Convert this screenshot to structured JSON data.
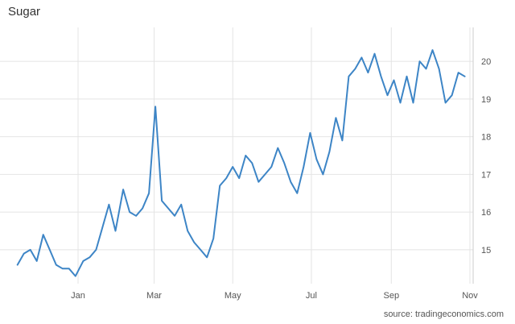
{
  "chart_data": {
    "type": "line",
    "title": "Sugar",
    "xlabel": "",
    "ylabel": "",
    "x_ticks": [
      "Jan",
      "Mar",
      "May",
      "Jul",
      "Sep",
      "Nov"
    ],
    "y_ticks": [
      "15",
      "16",
      "17",
      "18",
      "19",
      "20"
    ],
    "ylim": [
      14.1,
      20.9
    ],
    "grid": true,
    "legend": "none",
    "series": [
      {
        "color": "#3d85c6",
        "x": [
          "Nov 15",
          "Nov 20",
          "Nov 25",
          "Nov 30",
          "Dec 5",
          "Dec 10",
          "Dec 15",
          "Dec 20",
          "Dec 25",
          "Dec 30",
          "Jan 5",
          "Jan 10",
          "Jan 15",
          "Jan 20",
          "Jan 25",
          "Jan 30",
          "Feb 5",
          "Feb 10",
          "Feb 15",
          "Feb 20",
          "Feb 25",
          "Mar 2",
          "Mar 7",
          "Mar 12",
          "Mar 17",
          "Mar 22",
          "Mar 27",
          "Apr 1",
          "Apr 6",
          "Apr 11",
          "Apr 16",
          "Apr 21",
          "Apr 26",
          "May 1",
          "May 6",
          "May 11",
          "May 16",
          "May 21",
          "May 26",
          "May 31",
          "Jun 5",
          "Jun 10",
          "Jun 15",
          "Jun 20",
          "Jun 25",
          "Jun 30",
          "Jul 5",
          "Jul 10",
          "Jul 15",
          "Jul 20",
          "Jul 25",
          "Jul 30",
          "Aug 4",
          "Aug 9",
          "Aug 14",
          "Aug 19",
          "Aug 24",
          "Aug 29",
          "Sep 3",
          "Sep 8",
          "Sep 13",
          "Sep 18",
          "Sep 23",
          "Sep 28",
          "Oct 3",
          "Oct 8",
          "Oct 13",
          "Oct 18",
          "Oct 23",
          "Oct 28"
        ],
        "values": [
          14.6,
          14.9,
          15.0,
          14.7,
          15.4,
          15.0,
          14.6,
          14.5,
          14.5,
          14.3,
          14.7,
          14.8,
          15.0,
          15.6,
          16.2,
          15.5,
          16.6,
          16.0,
          15.9,
          16.1,
          16.5,
          18.8,
          16.3,
          16.1,
          15.9,
          16.2,
          15.5,
          15.2,
          15.0,
          14.8,
          15.3,
          16.7,
          16.9,
          17.2,
          16.9,
          17.5,
          17.3,
          16.8,
          17.0,
          17.2,
          17.7,
          17.3,
          16.8,
          16.5,
          17.2,
          18.1,
          17.4,
          17.0,
          17.6,
          18.5,
          17.9,
          19.6,
          19.8,
          20.1,
          19.7,
          20.2,
          19.6,
          19.1,
          19.5,
          18.9,
          19.6,
          18.9,
          20.0,
          19.8,
          20.3,
          19.8,
          18.9,
          19.1,
          19.7,
          19.6
        ]
      }
    ]
  },
  "source_text": "source: tradingeconomics.com"
}
